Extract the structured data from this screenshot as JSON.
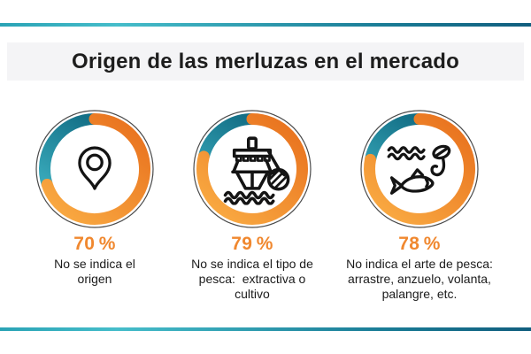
{
  "header": {
    "title": "Origen de las merluzas en el mercado"
  },
  "colors": {
    "background": "#ffffff",
    "accent_orange": "#f0882f",
    "orange_arc_start": "#e9731f",
    "orange_arc_end": "#f9aa42",
    "teal_arc_start": "#0f6880",
    "teal_arc_end": "#3fb4c4",
    "ring_outline": "#4a4a4a",
    "icon_stroke": "#141414",
    "body_text": "#1b1b1b",
    "title_text": "#1d1d1d",
    "title_band_bg": "#f4f4f6",
    "rule_gradient": [
      "#2aa3b5",
      "#45bdca",
      "#1a7c96",
      "#115e7e"
    ]
  },
  "chart_data": {
    "type": "donut",
    "title": "Origen de las merluzas en el mercado",
    "unit": "%",
    "items": [
      {
        "icon": "location-pin-icon",
        "value": 70,
        "remainder": 30,
        "percent_label": "70 %",
        "description": "No se indica el\norigen"
      },
      {
        "icon": "fishing-boat-icon",
        "value": 79,
        "remainder": 21,
        "percent_label": "79 %",
        "description": "No se indica el tipo de\npesca:  extractiva o\ncultivo"
      },
      {
        "icon": "fish-and-hook-icon",
        "value": 78,
        "remainder": 22,
        "percent_label": "78 %",
        "description": "No indica el arte de pesca:\narrastre, anzuelo, volanta,\npalangre, etc."
      }
    ]
  }
}
